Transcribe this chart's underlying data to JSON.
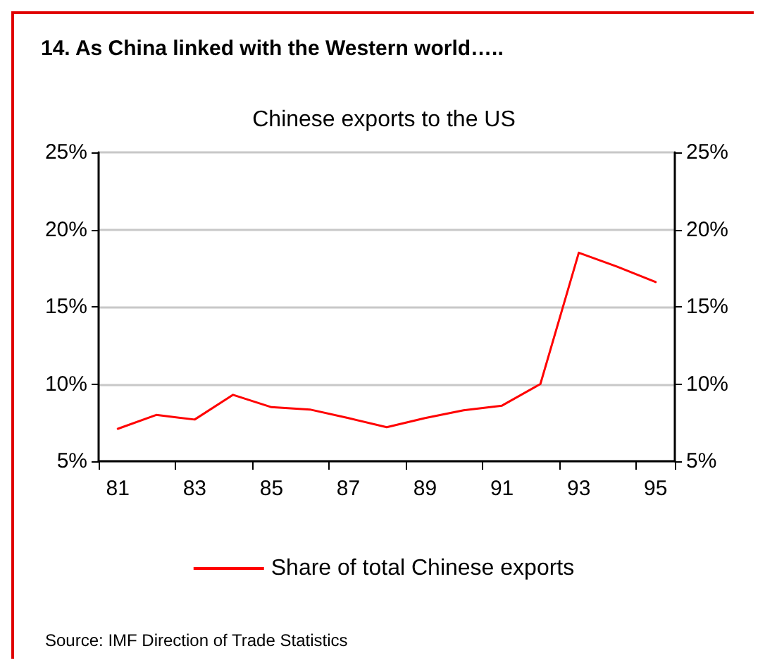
{
  "chart_data": {
    "type": "line",
    "title": "14. As China linked with the Western world…..",
    "subtitle": "Chinese exports to the US",
    "categories": [
      "81",
      null,
      "83",
      null,
      "85",
      null,
      "87",
      null,
      "89",
      null,
      "91",
      null,
      "93",
      null,
      "95"
    ],
    "series": [
      {
        "name": "Share of total Chinese exports",
        "color": "#ff0000",
        "values": [
          7.1,
          8.0,
          7.7,
          9.3,
          8.5,
          8.35,
          7.8,
          7.2,
          7.8,
          8.3,
          8.6,
          10.0,
          18.5,
          17.6,
          16.6
        ]
      }
    ],
    "ylim": [
      5,
      25
    ],
    "yticks": [
      {
        "value": 5,
        "label": "5%"
      },
      {
        "value": 10,
        "label": "10%"
      },
      {
        "value": 15,
        "label": "15%"
      },
      {
        "value": 20,
        "label": "20%"
      },
      {
        "value": 25,
        "label": "25%"
      }
    ],
    "y2lim": [
      5,
      25
    ],
    "y2ticks": [
      {
        "value": 5,
        "label": "5%"
      },
      {
        "value": 10,
        "label": "10%"
      },
      {
        "value": 15,
        "label": "15%"
      },
      {
        "value": 20,
        "label": "20%"
      },
      {
        "value": 25,
        "label": "25%"
      }
    ],
    "grid": "y",
    "legend": "bottom",
    "marker": "none",
    "line_style": "solid",
    "annotations": [
      "Source: IMF Direction of Trade Statistics"
    ]
  }
}
